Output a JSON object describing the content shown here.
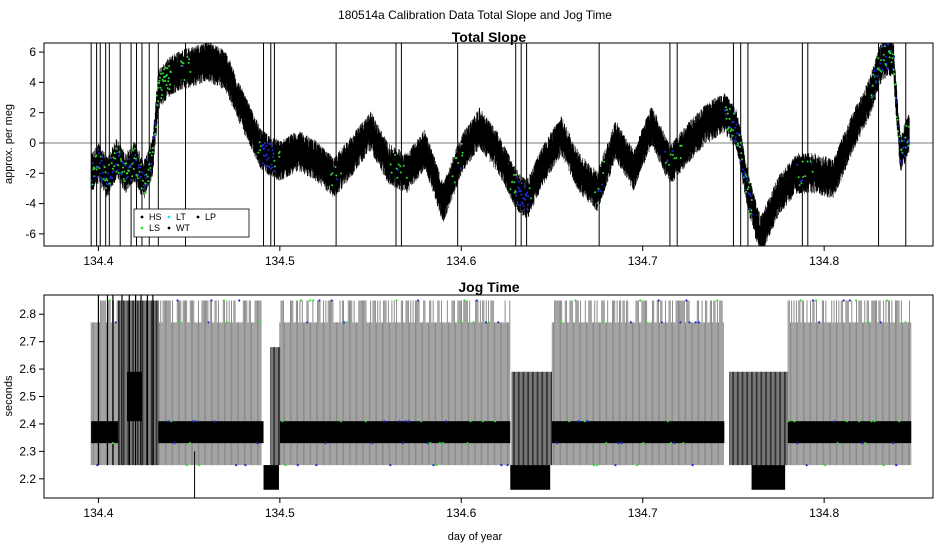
{
  "figure": {
    "title": "180514a   Calibration Data Total Slope and Jog Time",
    "xlabel": "day of year"
  },
  "colors": {
    "black": "#000000",
    "gray": "#808080",
    "blue": "#1f2bd6",
    "green": "#33dd33",
    "cyan": "#19e6e6",
    "zero_line": "#555555"
  },
  "chart_data": [
    {
      "type": "line",
      "title": "Total Slope",
      "xlabel": "",
      "ylabel": "approx. per meg",
      "xlim": [
        134.37,
        134.86
      ],
      "ylim": [
        -6.8,
        6.6
      ],
      "xticks": [
        134.4,
        134.5,
        134.6,
        134.7,
        134.8
      ],
      "xtick_labels": [
        "134.4",
        "134.5",
        "134.6",
        "134.7",
        "134.8"
      ],
      "yticks": [
        -6,
        -4,
        -2,
        0,
        2,
        4,
        6
      ],
      "ytick_labels": [
        "-6",
        "-4",
        "-2",
        "0",
        "2",
        "4",
        "6"
      ],
      "hline": 0,
      "legend": {
        "position": "bottom-left",
        "entries": [
          {
            "label": "HS",
            "color": "#000000"
          },
          {
            "label": "LT",
            "color": "#19e6e6"
          },
          {
            "label": "LP",
            "color": "#000000"
          },
          {
            "label": "LS",
            "color": "#33dd33"
          },
          {
            "label": "WT",
            "color": "#000000"
          }
        ]
      },
      "series": [
        {
          "x": [
            134.396,
            134.4,
            134.405,
            134.41,
            134.415,
            134.42,
            134.425,
            134.43,
            134.433,
            134.44,
            134.45,
            134.46,
            134.47,
            134.48,
            134.49,
            134.5,
            134.51,
            134.52,
            134.53,
            134.54,
            134.55,
            134.56,
            134.57,
            134.58,
            134.59,
            134.6,
            134.61,
            134.62,
            134.63,
            134.636,
            134.645,
            134.655,
            134.665,
            134.675,
            134.685,
            134.695,
            134.705,
            134.715,
            134.725,
            134.735,
            134.745,
            134.752,
            134.758,
            134.765,
            134.775,
            134.785,
            134.795,
            134.805,
            134.815,
            134.825,
            134.832,
            134.838,
            134.842,
            134.847
          ],
          "values": [
            -2.0,
            -1.3,
            -2.3,
            -1.0,
            -2.0,
            -1.2,
            -2.5,
            -0.8,
            3.5,
            4.5,
            5.0,
            5.4,
            4.8,
            2.0,
            -0.5,
            -1.2,
            -0.5,
            -1.2,
            -2.3,
            -0.8,
            0.8,
            -1.4,
            -2.0,
            -0.4,
            -4.0,
            -0.8,
            1.0,
            -0.6,
            -3.0,
            -3.8,
            -1.5,
            0.5,
            -2.0,
            -3.2,
            0.2,
            -1.8,
            1.2,
            -1.5,
            0.0,
            1.3,
            2.0,
            0.8,
            -3.2,
            -6.2,
            -3.4,
            -2.0,
            -2.0,
            -2.4,
            0.5,
            3.0,
            5.5,
            5.8,
            -0.8,
            0.8
          ]
        }
      ],
      "spikes_x": [
        134.396,
        134.399,
        134.401,
        134.404,
        134.406,
        134.412,
        134.418,
        134.421,
        134.424,
        134.428,
        134.433,
        134.448,
        134.491,
        134.495,
        134.497,
        134.531,
        134.564,
        134.567,
        134.598,
        134.63,
        134.633,
        134.636,
        134.676,
        134.715,
        134.719,
        134.75,
        134.754,
        134.758,
        134.788,
        134.791,
        134.83,
        134.845
      ]
    },
    {
      "type": "line",
      "title": "Jog Time",
      "xlabel": "day of year",
      "ylabel": "seconds",
      "xlim": [
        134.37,
        134.86
      ],
      "ylim": [
        2.13,
        2.87
      ],
      "xticks": [
        134.4,
        134.5,
        134.6,
        134.7,
        134.8
      ],
      "xtick_labels": [
        "134.4",
        "134.5",
        "134.6",
        "134.7",
        "134.8"
      ],
      "yticks": [
        2.2,
        2.3,
        2.4,
        2.5,
        2.6,
        2.7,
        2.8
      ],
      "ytick_labels": [
        "2.2",
        "2.3",
        "2.4",
        "2.5",
        "2.6",
        "2.7",
        "2.8"
      ],
      "levels": [
        2.25,
        2.33,
        2.41,
        2.77,
        2.85
      ],
      "low_state_band": [
        2.16,
        2.25
      ],
      "low_state_intervals": [
        [
          134.491,
          134.4995
        ],
        [
          134.627,
          134.649
        ],
        [
          134.76,
          134.7785
        ]
      ],
      "gap_intervals": [
        [
          134.411,
          134.433
        ],
        [
          134.49,
          134.5
        ],
        [
          134.627,
          134.65
        ],
        [
          134.745,
          134.78
        ]
      ]
    }
  ]
}
